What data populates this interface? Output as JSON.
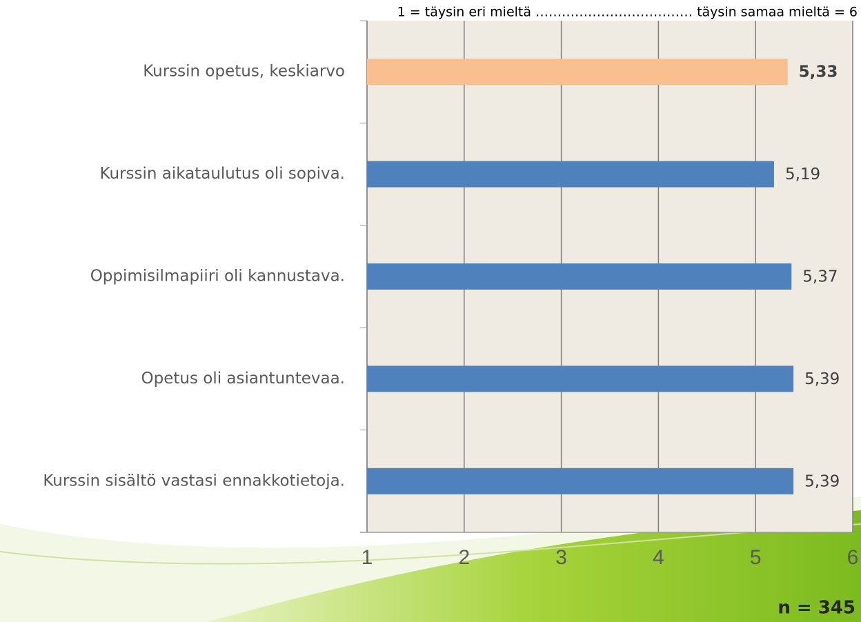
{
  "chart_data": {
    "type": "bar",
    "orientation": "horizontal",
    "subtitle": "1 = täysin eri mieltä ……………………………… täysin samaa mieltä = 6",
    "categories": [
      "Kurssin opetus, keskiarvo",
      "Kurssin aikataulutus oli sopiva.",
      "Oppimisilmapiiri oli kannustava.",
      "Opetus oli asiantuntevaa.",
      "Kurssin sisältö vastasi ennakkotietoja."
    ],
    "values": [
      5.33,
      5.19,
      5.37,
      5.39,
      5.39
    ],
    "value_labels": [
      "5,33",
      "5,19",
      "5,37",
      "5,39",
      "5,39"
    ],
    "colors": [
      "#f9bf8f",
      "#4f81bd",
      "#4f81bd",
      "#4f81bd",
      "#4f81bd"
    ],
    "xlim": [
      1,
      6
    ],
    "xticks": [
      1,
      2,
      3,
      4,
      5,
      6
    ],
    "grid": true,
    "annotation": "n = 345"
  }
}
